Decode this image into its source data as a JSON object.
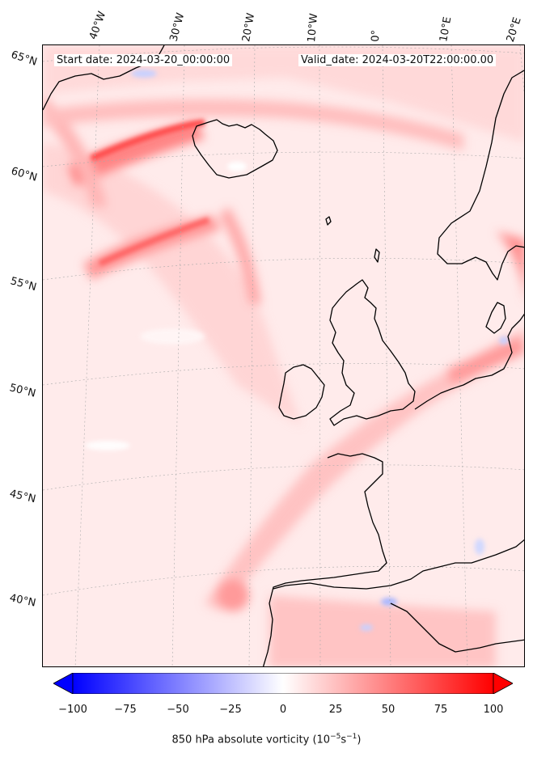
{
  "header": {
    "start_date": "Start date: 2024-03-20_00:00:00",
    "valid_date": "Valid_date: 2024-03-20T22:00:00.00"
  },
  "longitude_labels": [
    "40°W",
    "30°W",
    "20°W",
    "10°W",
    "0°",
    "10°E",
    "20°E"
  ],
  "latitude_labels": [
    "65°N",
    "60°N",
    "55°N",
    "50°N",
    "45°N",
    "40°N"
  ],
  "colorbar": {
    "ticks": [
      "−100",
      "−75",
      "−50",
      "−25",
      "0",
      "25",
      "50",
      "75",
      "100"
    ],
    "title": "850 hPa absolute vorticity (10",
    "title_exp1": "−5",
    "title_mid": "s",
    "title_exp2": "−1",
    "title_end": ")",
    "min_color": "#0000ff",
    "mid_color": "#ffffff",
    "max_color": "#ff0000"
  }
}
